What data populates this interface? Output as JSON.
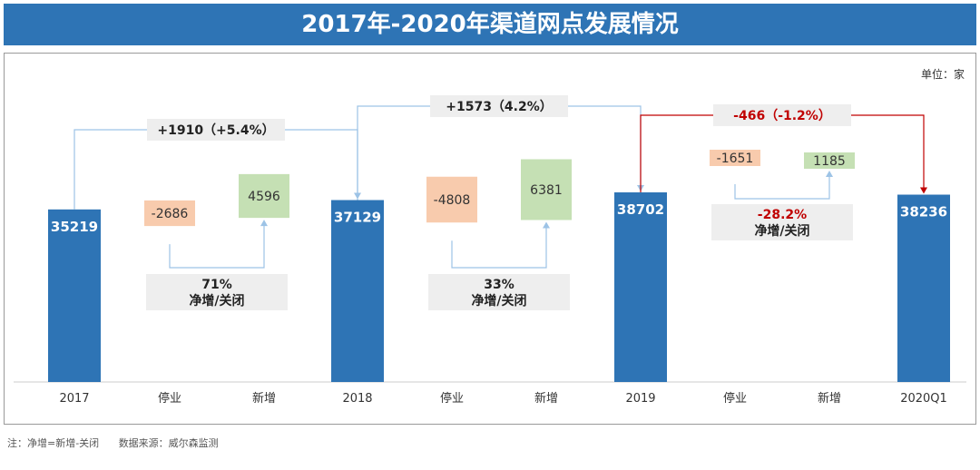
{
  "title": "2017年-2020年渠道网点发展情况",
  "unit": "单位：家",
  "chart_data": {
    "type": "bar",
    "categories": [
      "2017",
      "停业",
      "新增",
      "2018",
      "停业",
      "新增",
      "2019",
      "停业",
      "新增",
      "2020Q1"
    ],
    "totals": [
      {
        "category": "2017",
        "value": 35219
      },
      {
        "category": "2018",
        "value": 37129
      },
      {
        "category": "2019",
        "value": 38702
      },
      {
        "category": "2020Q1",
        "value": 38236
      }
    ],
    "changes": [
      {
        "category": "停业",
        "value": -2686
      },
      {
        "category": "新增",
        "value": 4596
      },
      {
        "category": "停业",
        "value": -4808
      },
      {
        "category": "新增",
        "value": 6381
      },
      {
        "category": "停业",
        "value": -1651
      },
      {
        "category": "新增",
        "value": 1185
      }
    ],
    "period_growth": [
      {
        "label": "+1910（+5.4%）",
        "color": "#222222"
      },
      {
        "label": "+1573（4.2%）",
        "color": "#222222"
      },
      {
        "label": "-466（-1.2%）",
        "color": "#c00000"
      }
    ],
    "net_ratio": [
      {
        "pct": "71%",
        "label": "净增/关闭",
        "color": "#222222"
      },
      {
        "pct": "33%",
        "label": "净增/关闭",
        "color": "#222222"
      },
      {
        "pct": "-28.2%",
        "label": "净增/关闭",
        "color": "#c00000"
      }
    ],
    "colors": {
      "total": "#2e74b5",
      "closed": "#f8cbad",
      "new": "#c5e0b4",
      "connector": "#9dc3e6",
      "negative": "#c00000"
    }
  },
  "footnote": {
    "note": "注：净增=新增-关闭",
    "source": "数据来源：威尔森监测"
  }
}
